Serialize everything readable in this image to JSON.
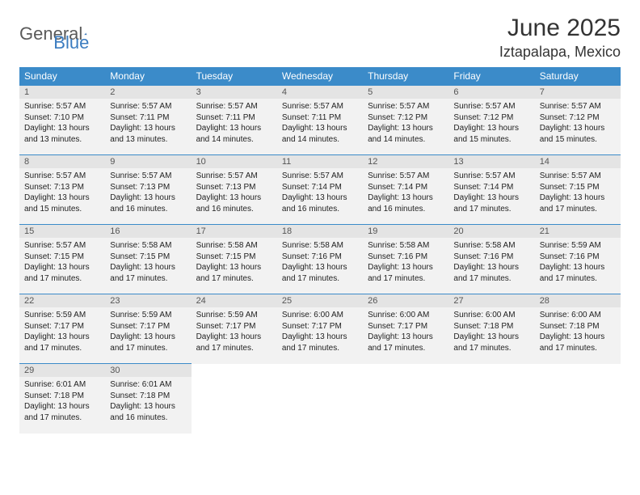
{
  "logo": {
    "general": "General",
    "blue": "Blue"
  },
  "title": "June 2025",
  "location": "Iztapalapa, Mexico",
  "colors": {
    "header_bg": "#3b8bc9",
    "header_fg": "#ffffff",
    "cell_bg": "#f2f2f2",
    "daynum_bg": "#e4e4e4",
    "border": "#3b8bc9",
    "logo_accent": "#3b7cc0",
    "logo_gray": "#5a5a5a"
  },
  "weekdays": [
    "Sunday",
    "Monday",
    "Tuesday",
    "Wednesday",
    "Thursday",
    "Friday",
    "Saturday"
  ],
  "weeks": [
    [
      {
        "n": "1",
        "sr": "5:57 AM",
        "ss": "7:10 PM",
        "dl": "13 hours and 13 minutes."
      },
      {
        "n": "2",
        "sr": "5:57 AM",
        "ss": "7:11 PM",
        "dl": "13 hours and 13 minutes."
      },
      {
        "n": "3",
        "sr": "5:57 AM",
        "ss": "7:11 PM",
        "dl": "13 hours and 14 minutes."
      },
      {
        "n": "4",
        "sr": "5:57 AM",
        "ss": "7:11 PM",
        "dl": "13 hours and 14 minutes."
      },
      {
        "n": "5",
        "sr": "5:57 AM",
        "ss": "7:12 PM",
        "dl": "13 hours and 14 minutes."
      },
      {
        "n": "6",
        "sr": "5:57 AM",
        "ss": "7:12 PM",
        "dl": "13 hours and 15 minutes."
      },
      {
        "n": "7",
        "sr": "5:57 AM",
        "ss": "7:12 PM",
        "dl": "13 hours and 15 minutes."
      }
    ],
    [
      {
        "n": "8",
        "sr": "5:57 AM",
        "ss": "7:13 PM",
        "dl": "13 hours and 15 minutes."
      },
      {
        "n": "9",
        "sr": "5:57 AM",
        "ss": "7:13 PM",
        "dl": "13 hours and 16 minutes."
      },
      {
        "n": "10",
        "sr": "5:57 AM",
        "ss": "7:13 PM",
        "dl": "13 hours and 16 minutes."
      },
      {
        "n": "11",
        "sr": "5:57 AM",
        "ss": "7:14 PM",
        "dl": "13 hours and 16 minutes."
      },
      {
        "n": "12",
        "sr": "5:57 AM",
        "ss": "7:14 PM",
        "dl": "13 hours and 16 minutes."
      },
      {
        "n": "13",
        "sr": "5:57 AM",
        "ss": "7:14 PM",
        "dl": "13 hours and 17 minutes."
      },
      {
        "n": "14",
        "sr": "5:57 AM",
        "ss": "7:15 PM",
        "dl": "13 hours and 17 minutes."
      }
    ],
    [
      {
        "n": "15",
        "sr": "5:57 AM",
        "ss": "7:15 PM",
        "dl": "13 hours and 17 minutes."
      },
      {
        "n": "16",
        "sr": "5:58 AM",
        "ss": "7:15 PM",
        "dl": "13 hours and 17 minutes."
      },
      {
        "n": "17",
        "sr": "5:58 AM",
        "ss": "7:15 PM",
        "dl": "13 hours and 17 minutes."
      },
      {
        "n": "18",
        "sr": "5:58 AM",
        "ss": "7:16 PM",
        "dl": "13 hours and 17 minutes."
      },
      {
        "n": "19",
        "sr": "5:58 AM",
        "ss": "7:16 PM",
        "dl": "13 hours and 17 minutes."
      },
      {
        "n": "20",
        "sr": "5:58 AM",
        "ss": "7:16 PM",
        "dl": "13 hours and 17 minutes."
      },
      {
        "n": "21",
        "sr": "5:59 AM",
        "ss": "7:16 PM",
        "dl": "13 hours and 17 minutes."
      }
    ],
    [
      {
        "n": "22",
        "sr": "5:59 AM",
        "ss": "7:17 PM",
        "dl": "13 hours and 17 minutes."
      },
      {
        "n": "23",
        "sr": "5:59 AM",
        "ss": "7:17 PM",
        "dl": "13 hours and 17 minutes."
      },
      {
        "n": "24",
        "sr": "5:59 AM",
        "ss": "7:17 PM",
        "dl": "13 hours and 17 minutes."
      },
      {
        "n": "25",
        "sr": "6:00 AM",
        "ss": "7:17 PM",
        "dl": "13 hours and 17 minutes."
      },
      {
        "n": "26",
        "sr": "6:00 AM",
        "ss": "7:17 PM",
        "dl": "13 hours and 17 minutes."
      },
      {
        "n": "27",
        "sr": "6:00 AM",
        "ss": "7:18 PM",
        "dl": "13 hours and 17 minutes."
      },
      {
        "n": "28",
        "sr": "6:00 AM",
        "ss": "7:18 PM",
        "dl": "13 hours and 17 minutes."
      }
    ],
    [
      {
        "n": "29",
        "sr": "6:01 AM",
        "ss": "7:18 PM",
        "dl": "13 hours and 17 minutes."
      },
      {
        "n": "30",
        "sr": "6:01 AM",
        "ss": "7:18 PM",
        "dl": "13 hours and 16 minutes."
      },
      null,
      null,
      null,
      null,
      null
    ]
  ],
  "labels": {
    "sunrise": "Sunrise:",
    "sunset": "Sunset:",
    "daylight": "Daylight:"
  }
}
